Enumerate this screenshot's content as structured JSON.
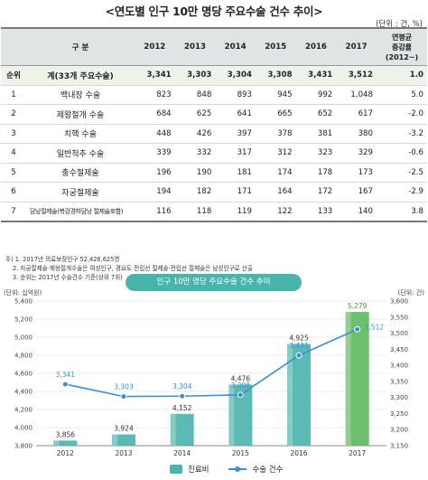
{
  "title": "<연도별 인구 10만 명당 주요수술 건수 추이>",
  "unit": "(단위 : 건, %)",
  "table": {
    "rank_header": "순위",
    "name_header": "구 분",
    "years": [
      "2012",
      "2013",
      "2014",
      "2015",
      "2016",
      "2017"
    ],
    "per_header_lines": [
      "연평균",
      "증감률",
      "(2012~)"
    ],
    "total": {
      "label": "계(33개 주요수술)",
      "values": [
        "3,341",
        "3,303",
        "3,304",
        "3,308",
        "3,431",
        "3,512"
      ],
      "rate": "1.0"
    },
    "rows": [
      {
        "rank": "1",
        "name": "백내장 수술",
        "values": [
          "823",
          "848",
          "893",
          "945",
          "992",
          "1,048"
        ],
        "rate": "5.0"
      },
      {
        "rank": "2",
        "name": "제왕절개 수술",
        "values": [
          "684",
          "625",
          "641",
          "665",
          "652",
          "617"
        ],
        "rate": "-2.0"
      },
      {
        "rank": "3",
        "name": "치핵 수술",
        "values": [
          "448",
          "426",
          "397",
          "378",
          "381",
          "380"
        ],
        "rate": "-3.2"
      },
      {
        "rank": "4",
        "name": "일반척추 수술",
        "values": [
          "339",
          "332",
          "317",
          "312",
          "323",
          "329"
        ],
        "rate": "-0.6"
      },
      {
        "rank": "5",
        "name": "충수절제술",
        "values": [
          "196",
          "190",
          "181",
          "174",
          "178",
          "173"
        ],
        "rate": "-2.5"
      },
      {
        "rank": "6",
        "name": "자궁절제술",
        "values": [
          "194",
          "182",
          "171",
          "164",
          "172",
          "167"
        ],
        "rate": "-2.9"
      },
      {
        "rank": "7",
        "name": "담낭절제술(복강경하담낭 절제술포함)",
        "values": [
          "116",
          "118",
          "119",
          "122",
          "133",
          "140"
        ],
        "rate": "3.8"
      }
    ]
  },
  "notes": [
    "주) 1. 2017년 의료보장인구 52,426,625명",
    "2. 자궁절제술·제왕절개수술은 여성인구, 경요도 전립선 절제술·전립선 절제술은 남성인구로 산출",
    "3. 순위는 2017년 수술건수 기준(상위 7위)"
  ],
  "chart_data": {
    "type": "bar",
    "title": "인구 10만 명당 주요수술 건수 추이",
    "categories": [
      "2012",
      "2013",
      "2014",
      "2015",
      "2016",
      "2017"
    ],
    "left_axis_label": "(단위: 십억원)",
    "right_axis_label": "(단위: 건)",
    "left_ylim": [
      3800,
      5400
    ],
    "left_ticks": [
      "3,800",
      "4,000",
      "4,200",
      "4,400",
      "4,600",
      "4,800",
      "5,000",
      "5,200",
      "5,400"
    ],
    "right_ylim": [
      3150,
      3600
    ],
    "right_ticks": [
      "3,150",
      "3,200",
      "3,250",
      "3,300",
      "3,350",
      "3,400",
      "3,450",
      "3,500",
      "3,550",
      "3,600"
    ],
    "series": [
      {
        "name": "진료비",
        "kind": "bar",
        "axis": "left",
        "values": [
          3856,
          3924,
          4152,
          4476,
          4925,
          5279
        ],
        "labels": [
          "3,856",
          "3,924",
          "4,152",
          "4,476",
          "4,925",
          "5,279"
        ],
        "color": "#49b4ac",
        "last_color": "#5cb85c"
      },
      {
        "name": "수술 건수",
        "kind": "line",
        "axis": "right",
        "values": [
          3341,
          3303,
          3304,
          3308,
          3431,
          3512
        ],
        "labels": [
          "3,341",
          "3,303",
          "3,304",
          "3,308",
          "3,431",
          "3,512"
        ],
        "color": "#3b8fd1"
      }
    ]
  }
}
